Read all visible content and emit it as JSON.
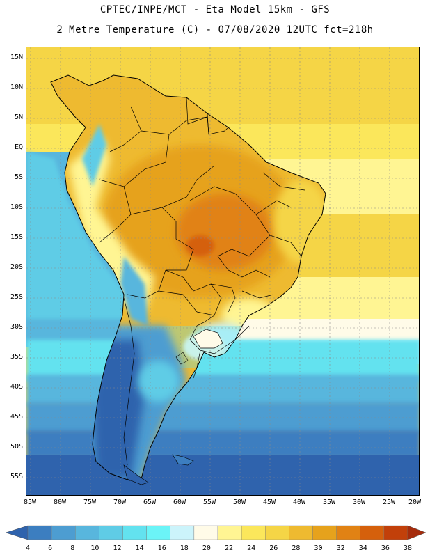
{
  "header": {
    "line1": "CPTEC/INPE/MCT -  Eta Model 15km - GFS",
    "line2": "2 Metre Temperature (C) - 07/08/2020 12UTC fct=218h"
  },
  "map": {
    "lat_labels": [
      "15N",
      "10N",
      "5N",
      "EQ",
      "5S",
      "10S",
      "15S",
      "20S",
      "25S",
      "30S",
      "35S",
      "40S",
      "45S",
      "50S",
      "55S"
    ],
    "lon_labels": [
      "85W",
      "80W",
      "75W",
      "70W",
      "65W",
      "60W",
      "55W",
      "50W",
      "45W",
      "40W",
      "35W",
      "30W",
      "25W",
      "20W"
    ],
    "lat_range": [
      -57.5,
      17.5
    ],
    "lon_range": [
      -85.5,
      -20.0
    ],
    "grid": true,
    "region": "South America"
  },
  "colorbar": {
    "labels": [
      "4",
      "6",
      "8",
      "10",
      "12",
      "14",
      "16",
      "18",
      "20",
      "22",
      "24",
      "26",
      "28",
      "30",
      "32",
      "34",
      "36",
      "38"
    ],
    "colors": [
      "#2f63ad",
      "#3c7ec0",
      "#4d9dd1",
      "#58b6dd",
      "#5fcce6",
      "#63e2ef",
      "#6bf4f7",
      "#ccf4fb",
      "#fffbe8",
      "#fff593",
      "#fbe75b",
      "#f5d546",
      "#eeba30",
      "#e6a21c",
      "#e18214",
      "#d5600c",
      "#c2400a",
      "#a52c0c"
    ]
  },
  "palette": {
    "ocean_south": "#2f63ad",
    "land_north": "#eeba30",
    "land_hot": "#e6a21c"
  }
}
